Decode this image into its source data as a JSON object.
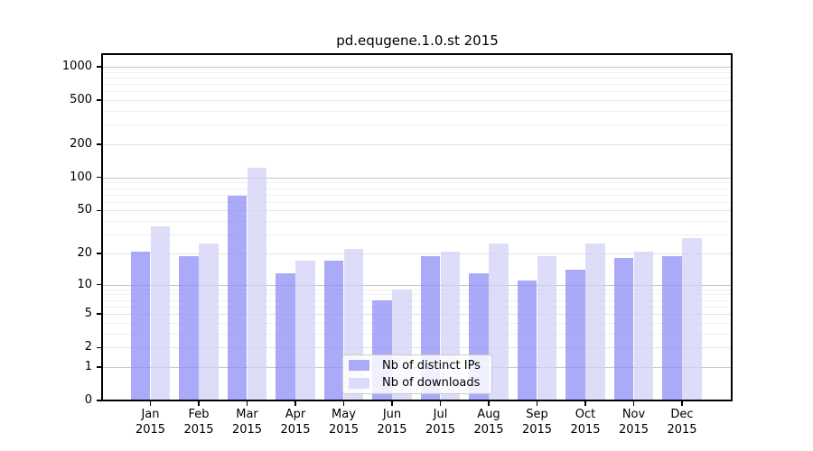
{
  "chart_data": {
    "type": "bar",
    "title": "pd.equgene.1.0.st 2015",
    "xlabel": "",
    "ylabel": "",
    "scale": "log1p",
    "ylim": [
      0,
      1000
    ],
    "grid": true,
    "legend_position": "inside-bottom-center",
    "y_ticks": [
      0,
      1,
      2,
      5,
      10,
      20,
      50,
      100,
      200,
      500,
      1000
    ],
    "x_categories": [
      "Jan",
      "Feb",
      "Mar",
      "Apr",
      "May",
      "Jun",
      "Jul",
      "Aug",
      "Sep",
      "Oct",
      "Nov",
      "Dec"
    ],
    "x_year": "2015",
    "series": [
      {
        "name": "Nb of distinct IPs",
        "color": "#aaaaf8",
        "values": [
          21,
          19,
          68,
          13,
          17,
          7,
          19,
          13,
          11,
          14,
          18,
          19
        ]
      },
      {
        "name": "Nb of downloads",
        "color": "#dcdcfa",
        "values": [
          36,
          25,
          122,
          17,
          22,
          9,
          21,
          25,
          19,
          25,
          21,
          28
        ]
      }
    ]
  },
  "colors": {
    "background": "#ffffff",
    "axis": "#000000",
    "grid_major": "#c6c6c6",
    "grid_medium": "#e3e3e3",
    "grid_minor": "#f0f0f0"
  }
}
